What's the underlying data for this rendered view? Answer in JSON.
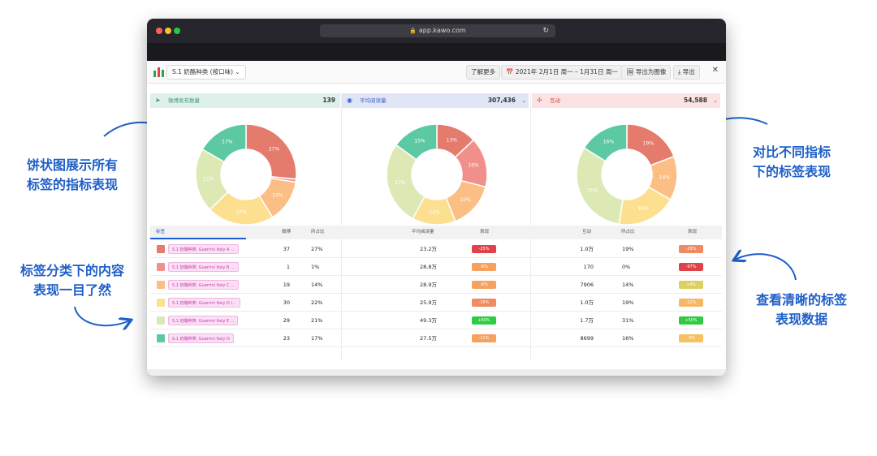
{
  "browser": {
    "url": "app.kawo.com",
    "dot_colors": [
      "#fe5f57",
      "#febc2e",
      "#28c840"
    ]
  },
  "annotations": {
    "left_top": [
      "饼状图展示所有",
      "标签的指标表现"
    ],
    "left_bottom": [
      "标签分类下的内容",
      "表现一目了然"
    ],
    "right_top": [
      "对比不同指标",
      "下的标签表现"
    ],
    "right_bottom": [
      "查看清晰的标签",
      "表现数据"
    ]
  },
  "toolbar": {
    "tag_select": "S.1 奶酪种类 (按口味) ⌄",
    "learn_more": "了解更多",
    "date_range": "📅  2021年 2月1日 周一 – 1月31日 周一",
    "export_image": "🖼  导出为图像",
    "export": "⤓  导出",
    "close": "✕"
  },
  "panels": [
    {
      "icon": "➤",
      "label": "微博发布数量",
      "total": "139",
      "bg": "#dff0ea",
      "color": "#3c9a7a"
    },
    {
      "icon": "◉",
      "label": "平均阅读量",
      "total": "307,436",
      "bg": "#e1e6f7",
      "color": "#3d5fc4",
      "chevron": "⌄"
    },
    {
      "icon": "✢",
      "label": "互动",
      "total": "54,588",
      "bg": "#fbe3e3",
      "color": "#d44a4a",
      "chevron": "⌄"
    }
  ],
  "chart_data": [
    {
      "type": "pie",
      "title": "微博发布数量",
      "categories": [
        "S.1 奶酪种类: Guerrini Italy A",
        "S.1 奶酪种类: Guerrini Italy B",
        "S.1 奶酪种类: Guerrini Italy C",
        "S.1 奶酪种类: Guerrini Italy D",
        "S.1 奶酪种类: Guerrini Italy E",
        "S.1 奶酪种类: Guerrini Italy O"
      ],
      "values": [
        27,
        1,
        14,
        22,
        21,
        17
      ],
      "labels": [
        "27%",
        "",
        "14%",
        "22%",
        "21%",
        "17%"
      ],
      "colors": [
        "#e47b6d",
        "#f1908a",
        "#fbbf86",
        "#fde08f",
        "#dce9b5",
        "#5dc9a3"
      ]
    },
    {
      "type": "pie",
      "title": "平均阅读量",
      "categories": [
        "A",
        "B",
        "C",
        "D",
        "E",
        "O"
      ],
      "values": [
        13,
        16,
        15,
        14,
        27,
        15
      ],
      "labels": [
        "13%",
        "16%",
        "15%",
        "14%",
        "27%",
        "15%"
      ],
      "colors": [
        "#e47b6d",
        "#f1908a",
        "#fbbf86",
        "#fde08f",
        "#dce9b5",
        "#5dc9a3"
      ]
    },
    {
      "type": "pie",
      "title": "互动",
      "categories": [
        "A",
        "B",
        "C",
        "D",
        "E",
        "O"
      ],
      "values": [
        19,
        0,
        14,
        19,
        31,
        16
      ],
      "labels": [
        "19%",
        "",
        "14%",
        "19%",
        "31%",
        "16%"
      ],
      "colors": [
        "#e47b6d",
        "#f1908a",
        "#fbbf86",
        "#fde08f",
        "#dce9b5",
        "#5dc9a3"
      ]
    }
  ],
  "table": {
    "headers": {
      "tag": "标签",
      "posts": "微博",
      "share1": "所占比",
      "avg_reads": "平均阅读量",
      "perf1": "表现",
      "interactions": "互动",
      "share2": "所占比",
      "perf2": "表现"
    },
    "rows": [
      {
        "color": "#e47b6d",
        "tag": "S.1 奶酪种类: Guerrini Italy A ...",
        "posts": "37",
        "share1": "27%",
        "avg_reads": "23.2万",
        "perf1": "-25%",
        "perf1_color": "#e0424a",
        "interactions": "1.0万",
        "share2": "19%",
        "perf2": "-29%",
        "perf2_color": "#ef8a62"
      },
      {
        "color": "#f1908a",
        "tag": "S.1 奶酪种类: Guerrini Italy B ...",
        "posts": "1",
        "share1": "1%",
        "avg_reads": "28.8万",
        "perf1": "-6%",
        "perf1_color": "#f5a15f",
        "interactions": "170",
        "share2": "0%",
        "perf2": "-97%",
        "perf2_color": "#e0424a"
      },
      {
        "color": "#fbbf86",
        "tag": "S.1 奶酪种类: Guerrini Italy C ...",
        "posts": "19",
        "share1": "14%",
        "avg_reads": "28.9万",
        "perf1": "-6%",
        "perf1_color": "#f5a15f",
        "interactions": "7906",
        "share2": "14%",
        "perf2": "+4%",
        "perf2_color": "#dcd063"
      },
      {
        "color": "#fde08f",
        "tag": "S.1 奶酪种类: Guerrini Italy D (...",
        "posts": "30",
        "share1": "22%",
        "avg_reads": "25.9万",
        "perf1": "-16%",
        "perf1_color": "#ef8a62",
        "interactions": "1.0万",
        "share2": "19%",
        "perf2": "-11%",
        "perf2_color": "#f5b862"
      },
      {
        "color": "#dce9b5",
        "tag": "S.1 奶酪种类: Guerrini Italy E ...",
        "posts": "29",
        "share1": "21%",
        "avg_reads": "49.3万",
        "perf1": "+60%",
        "perf1_color": "#2ecc40",
        "interactions": "1.7万",
        "share2": "31%",
        "perf2": "+50%",
        "perf2_color": "#2ecc40"
      },
      {
        "color": "#5dc9a3",
        "tag": "S.1 奶酪种类: Guerrini Italy O",
        "posts": "23",
        "share1": "17%",
        "avg_reads": "27.5万",
        "perf1": "-11%",
        "perf1_color": "#f5a15f",
        "interactions": "8699",
        "share2": "16%",
        "perf2": "-3%",
        "perf2_color": "#f5c262"
      }
    ]
  }
}
